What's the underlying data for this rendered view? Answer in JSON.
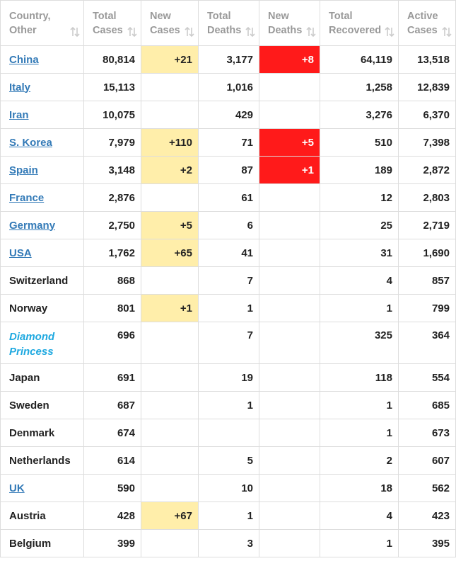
{
  "header": [
    "Country,\nOther",
    "Total\nCases",
    "New\nCases",
    "Total\nDeaths",
    "New\nDeaths",
    "Total\nRecovered",
    "Active\nCases"
  ],
  "new_cases_color": "#ffeeaa",
  "new_deaths_color": "#ff1a1a",
  "rows": [
    {
      "country": "China",
      "link": true,
      "total_cases": "80,814",
      "new_cases": "+21",
      "total_deaths": "3,177",
      "new_deaths": "+8",
      "total_recovered": "64,119",
      "active_cases": "13,518"
    },
    {
      "country": "Italy",
      "link": true,
      "total_cases": "15,113",
      "new_cases": null,
      "total_deaths": "1,016",
      "new_deaths": null,
      "total_recovered": "1,258",
      "active_cases": "12,839"
    },
    {
      "country": "Iran",
      "link": true,
      "total_cases": "10,075",
      "new_cases": null,
      "total_deaths": "429",
      "new_deaths": null,
      "total_recovered": "3,276",
      "active_cases": "6,370"
    },
    {
      "country": "S. Korea",
      "link": true,
      "total_cases": "7,979",
      "new_cases": "+110",
      "total_deaths": "71",
      "new_deaths": "+5",
      "total_recovered": "510",
      "active_cases": "7,398"
    },
    {
      "country": "Spain",
      "link": true,
      "total_cases": "3,148",
      "new_cases": "+2",
      "total_deaths": "87",
      "new_deaths": "+1",
      "total_recovered": "189",
      "active_cases": "2,872"
    },
    {
      "country": "France",
      "link": true,
      "total_cases": "2,876",
      "new_cases": null,
      "total_deaths": "61",
      "new_deaths": null,
      "total_recovered": "12",
      "active_cases": "2,803"
    },
    {
      "country": "Germany",
      "link": true,
      "total_cases": "2,750",
      "new_cases": "+5",
      "total_deaths": "6",
      "new_deaths": null,
      "total_recovered": "25",
      "active_cases": "2,719"
    },
    {
      "country": "USA",
      "link": true,
      "total_cases": "1,762",
      "new_cases": "+65",
      "total_deaths": "41",
      "new_deaths": null,
      "total_recovered": "31",
      "active_cases": "1,690"
    },
    {
      "country": "Switzerland",
      "link": false,
      "total_cases": "868",
      "new_cases": null,
      "total_deaths": "7",
      "new_deaths": null,
      "total_recovered": "4",
      "active_cases": "857"
    },
    {
      "country": "Norway",
      "link": false,
      "total_cases": "801",
      "new_cases": "+1",
      "total_deaths": "1",
      "new_deaths": null,
      "total_recovered": "1",
      "active_cases": "799"
    },
    {
      "country": "Diamond\nPrincess",
      "link": false,
      "italic": true,
      "total_cases": "696",
      "new_cases": null,
      "total_deaths": "7",
      "new_deaths": null,
      "total_recovered": "325",
      "active_cases": "364"
    },
    {
      "country": "Japan",
      "link": false,
      "total_cases": "691",
      "new_cases": null,
      "total_deaths": "19",
      "new_deaths": null,
      "total_recovered": "118",
      "active_cases": "554"
    },
    {
      "country": "Sweden",
      "link": false,
      "total_cases": "687",
      "new_cases": null,
      "total_deaths": "1",
      "new_deaths": null,
      "total_recovered": "1",
      "active_cases": "685"
    },
    {
      "country": "Denmark",
      "link": false,
      "total_cases": "674",
      "new_cases": null,
      "total_deaths": null,
      "new_deaths": null,
      "total_recovered": "1",
      "active_cases": "673"
    },
    {
      "country": "Netherlands",
      "link": false,
      "total_cases": "614",
      "new_cases": null,
      "total_deaths": "5",
      "new_deaths": null,
      "total_recovered": "2",
      "active_cases": "607"
    },
    {
      "country": "UK",
      "link": true,
      "total_cases": "590",
      "new_cases": null,
      "total_deaths": "10",
      "new_deaths": null,
      "total_recovered": "18",
      "active_cases": "562"
    },
    {
      "country": "Austria",
      "link": false,
      "total_cases": "428",
      "new_cases": "+67",
      "total_deaths": "1",
      "new_deaths": null,
      "total_recovered": "4",
      "active_cases": "423"
    },
    {
      "country": "Belgium",
      "link": false,
      "total_cases": "399",
      "new_cases": null,
      "total_deaths": "3",
      "new_deaths": null,
      "total_recovered": "1",
      "active_cases": "395"
    }
  ]
}
